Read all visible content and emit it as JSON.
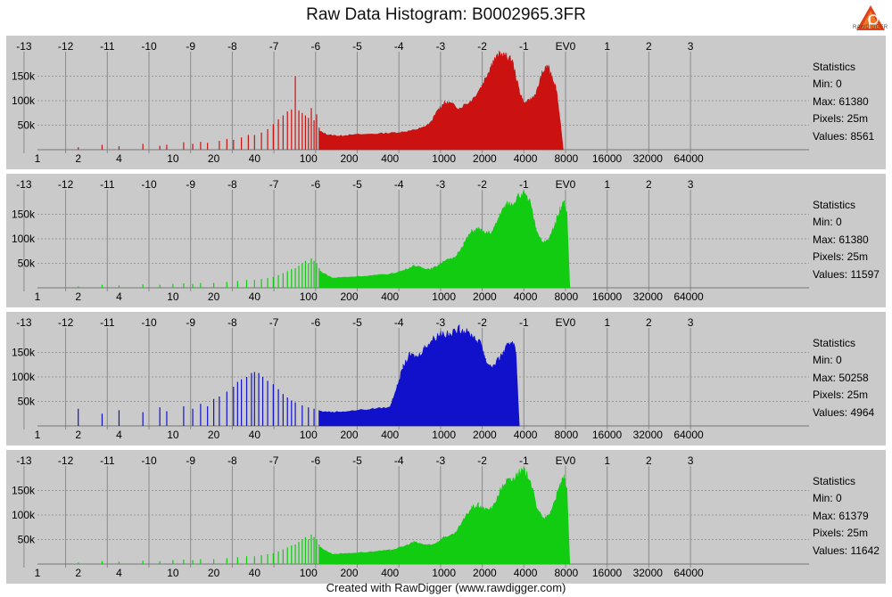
{
  "title": "Raw Data Histogram: B0002965.3FR",
  "footer": "Created with RawDigger (www.rawdigger.com)",
  "logo_text": "RAWDIGGER",
  "chart_data": {
    "type": "area",
    "ev_ticks": [
      "-13",
      "-12",
      "-11",
      "-10",
      "-9",
      "-8",
      "-7",
      "-6",
      "-5",
      "-4",
      "-3",
      "-2",
      "-1",
      "EV0",
      "1",
      "2",
      "3"
    ],
    "x_ticks": [
      "1",
      "2",
      "4",
      "10",
      "20",
      "40",
      "100",
      "200",
      "400",
      "1000",
      "2000",
      "4000",
      "8000",
      "16000",
      "32000",
      "64000"
    ],
    "y_ticks": [
      "50k",
      "100k",
      "150k"
    ],
    "ylim": [
      0,
      200000
    ],
    "x_scale": "log",
    "grid": true,
    "panels": [
      {
        "color": "#cc1111",
        "stats": {
          "title": "Statistics",
          "min": "Min: 0",
          "max": "Max: 61380",
          "pixels": "Pixels: 25m",
          "values": "Values: 8561"
        },
        "spikes": [
          [
            2,
            5000
          ],
          [
            3,
            10000
          ],
          [
            4,
            7000
          ],
          [
            6,
            12000
          ],
          [
            8,
            8000
          ],
          [
            9,
            10000
          ],
          [
            12,
            15000
          ],
          [
            14,
            12000
          ],
          [
            16,
            16000
          ],
          [
            18,
            14000
          ],
          [
            22,
            18000
          ],
          [
            25,
            22000
          ],
          [
            28,
            20000
          ],
          [
            32,
            25000
          ],
          [
            36,
            30000
          ],
          [
            40,
            30000
          ],
          [
            45,
            35000
          ],
          [
            50,
            42000
          ],
          [
            55,
            52000
          ],
          [
            60,
            62000
          ],
          [
            65,
            70000
          ],
          [
            70,
            78000
          ],
          [
            75,
            82000
          ],
          [
            80,
            150000
          ],
          [
            85,
            80000
          ],
          [
            90,
            75000
          ],
          [
            95,
            70000
          ],
          [
            100,
            65000
          ],
          [
            105,
            85000
          ],
          [
            110,
            60000
          ],
          [
            115,
            72000
          ],
          [
            120,
            45000
          ]
        ],
        "envelope": [
          [
            120,
            38000
          ],
          [
            140,
            30000
          ],
          [
            170,
            28000
          ],
          [
            200,
            30000
          ],
          [
            300,
            32000
          ],
          [
            400,
            34000
          ],
          [
            500,
            36000
          ],
          [
            600,
            40000
          ],
          [
            700,
            45000
          ],
          [
            800,
            55000
          ],
          [
            900,
            80000
          ],
          [
            1000,
            95000
          ],
          [
            1100,
            95000
          ],
          [
            1300,
            85000
          ],
          [
            1600,
            100000
          ],
          [
            1900,
            130000
          ],
          [
            2100,
            155000
          ],
          [
            2300,
            180000
          ],
          [
            2600,
            195000
          ],
          [
            2900,
            190000
          ],
          [
            3200,
            180000
          ],
          [
            3600,
            120000
          ],
          [
            3900,
            95000
          ],
          [
            4300,
            100000
          ],
          [
            4800,
            115000
          ],
          [
            5300,
            155000
          ],
          [
            5800,
            170000
          ],
          [
            6300,
            150000
          ],
          [
            6800,
            120000
          ],
          [
            7300,
            45000
          ],
          [
            7600,
            0
          ]
        ]
      },
      {
        "color": "#11cc11",
        "stats": {
          "title": "Statistics",
          "min": "Min: 0",
          "max": "Max: 61380",
          "pixels": "Pixels: 25m",
          "values": "Values: 11597"
        },
        "spikes": [
          [
            2,
            3000
          ],
          [
            3,
            6000
          ],
          [
            4,
            5000
          ],
          [
            6,
            7000
          ],
          [
            8,
            6000
          ],
          [
            10,
            8000
          ],
          [
            12,
            9000
          ],
          [
            14,
            8000
          ],
          [
            16,
            10000
          ],
          [
            20,
            10000
          ],
          [
            25,
            12000
          ],
          [
            30,
            14000
          ],
          [
            35,
            16000
          ],
          [
            40,
            16000
          ],
          [
            45,
            18000
          ],
          [
            50,
            20000
          ],
          [
            55,
            22000
          ],
          [
            60,
            26000
          ],
          [
            65,
            30000
          ],
          [
            70,
            34000
          ],
          [
            75,
            38000
          ],
          [
            80,
            40000
          ],
          [
            85,
            45000
          ],
          [
            90,
            50000
          ],
          [
            95,
            55000
          ],
          [
            100,
            50000
          ],
          [
            105,
            60000
          ],
          [
            110,
            55000
          ],
          [
            115,
            50000
          ],
          [
            120,
            40000
          ]
        ],
        "envelope": [
          [
            120,
            35000
          ],
          [
            150,
            20000
          ],
          [
            200,
            22000
          ],
          [
            300,
            25000
          ],
          [
            400,
            28000
          ],
          [
            500,
            35000
          ],
          [
            600,
            45000
          ],
          [
            700,
            40000
          ],
          [
            800,
            38000
          ],
          [
            900,
            45000
          ],
          [
            1000,
            55000
          ],
          [
            1200,
            60000
          ],
          [
            1400,
            90000
          ],
          [
            1600,
            115000
          ],
          [
            1800,
            120000
          ],
          [
            2000,
            110000
          ],
          [
            2300,
            115000
          ],
          [
            2600,
            150000
          ],
          [
            2900,
            170000
          ],
          [
            3200,
            170000
          ],
          [
            3500,
            185000
          ],
          [
            3900,
            190000
          ],
          [
            4300,
            175000
          ],
          [
            4800,
            120000
          ],
          [
            5400,
            90000
          ],
          [
            6000,
            100000
          ],
          [
            6600,
            130000
          ],
          [
            7200,
            160000
          ],
          [
            7700,
            175000
          ],
          [
            8100,
            150000
          ],
          [
            8500,
            0
          ]
        ]
      },
      {
        "color": "#1111cc",
        "stats": {
          "title": "Statistics",
          "min": "Min: 0",
          "max": "Max: 50258",
          "pixels": "Pixels: 25m",
          "values": "Values: 4964"
        },
        "spikes": [
          [
            2,
            35000
          ],
          [
            3,
            25000
          ],
          [
            4,
            32000
          ],
          [
            6,
            28000
          ],
          [
            8,
            38000
          ],
          [
            9,
            30000
          ],
          [
            12,
            40000
          ],
          [
            14,
            35000
          ],
          [
            16,
            45000
          ],
          [
            18,
            40000
          ],
          [
            20,
            55000
          ],
          [
            22,
            60000
          ],
          [
            25,
            70000
          ],
          [
            28,
            80000
          ],
          [
            30,
            90000
          ],
          [
            32,
            95000
          ],
          [
            35,
            100000
          ],
          [
            38,
            108000
          ],
          [
            40,
            110000
          ],
          [
            43,
            108000
          ],
          [
            46,
            100000
          ],
          [
            50,
            92000
          ],
          [
            55,
            85000
          ],
          [
            60,
            75000
          ],
          [
            65,
            65000
          ],
          [
            70,
            58000
          ],
          [
            75,
            52000
          ],
          [
            80,
            48000
          ],
          [
            90,
            42000
          ],
          [
            100,
            38000
          ],
          [
            110,
            35000
          ],
          [
            120,
            32000
          ]
        ],
        "envelope": [
          [
            120,
            30000
          ],
          [
            150,
            28000
          ],
          [
            200,
            30000
          ],
          [
            300,
            35000
          ],
          [
            400,
            38000
          ],
          [
            450,
            80000
          ],
          [
            500,
            120000
          ],
          [
            560,
            145000
          ],
          [
            640,
            140000
          ],
          [
            720,
            160000
          ],
          [
            820,
            175000
          ],
          [
            950,
            190000
          ],
          [
            1100,
            185000
          ],
          [
            1300,
            198000
          ],
          [
            1450,
            192000
          ],
          [
            1650,
            182000
          ],
          [
            1900,
            165000
          ],
          [
            2050,
            130000
          ],
          [
            2300,
            120000
          ],
          [
            2600,
            140000
          ],
          [
            2900,
            160000
          ],
          [
            3200,
            175000
          ],
          [
            3400,
            150000
          ],
          [
            3600,
            0
          ]
        ]
      },
      {
        "color": "#11cc11",
        "stats": {
          "title": "Statistics",
          "min": "Min: 0",
          "max": "Max: 61379",
          "pixels": "Pixels: 25m",
          "values": "Values: 11642"
        },
        "spikes": [
          [
            2,
            3000
          ],
          [
            3,
            6000
          ],
          [
            4,
            5000
          ],
          [
            6,
            7000
          ],
          [
            8,
            6000
          ],
          [
            10,
            8000
          ],
          [
            12,
            9000
          ],
          [
            14,
            8000
          ],
          [
            16,
            10000
          ],
          [
            20,
            10000
          ],
          [
            25,
            12000
          ],
          [
            30,
            14000
          ],
          [
            35,
            16000
          ],
          [
            40,
            16000
          ],
          [
            45,
            18000
          ],
          [
            50,
            20000
          ],
          [
            55,
            22000
          ],
          [
            60,
            26000
          ],
          [
            65,
            30000
          ],
          [
            70,
            34000
          ],
          [
            75,
            38000
          ],
          [
            80,
            40000
          ],
          [
            85,
            45000
          ],
          [
            90,
            50000
          ],
          [
            95,
            55000
          ],
          [
            100,
            50000
          ],
          [
            105,
            60000
          ],
          [
            110,
            55000
          ],
          [
            115,
            50000
          ],
          [
            120,
            40000
          ]
        ],
        "envelope": [
          [
            120,
            35000
          ],
          [
            150,
            20000
          ],
          [
            200,
            22000
          ],
          [
            300,
            25000
          ],
          [
            400,
            28000
          ],
          [
            500,
            35000
          ],
          [
            600,
            45000
          ],
          [
            700,
            40000
          ],
          [
            800,
            38000
          ],
          [
            900,
            45000
          ],
          [
            1000,
            55000
          ],
          [
            1200,
            60000
          ],
          [
            1400,
            90000
          ],
          [
            1600,
            115000
          ],
          [
            1800,
            120000
          ],
          [
            2000,
            110000
          ],
          [
            2300,
            115000
          ],
          [
            2600,
            150000
          ],
          [
            2900,
            170000
          ],
          [
            3200,
            170000
          ],
          [
            3500,
            185000
          ],
          [
            3900,
            190000
          ],
          [
            4300,
            175000
          ],
          [
            4800,
            120000
          ],
          [
            5400,
            90000
          ],
          [
            6000,
            100000
          ],
          [
            6600,
            130000
          ],
          [
            7200,
            160000
          ],
          [
            7700,
            175000
          ],
          [
            8100,
            150000
          ],
          [
            8500,
            0
          ]
        ]
      }
    ]
  }
}
